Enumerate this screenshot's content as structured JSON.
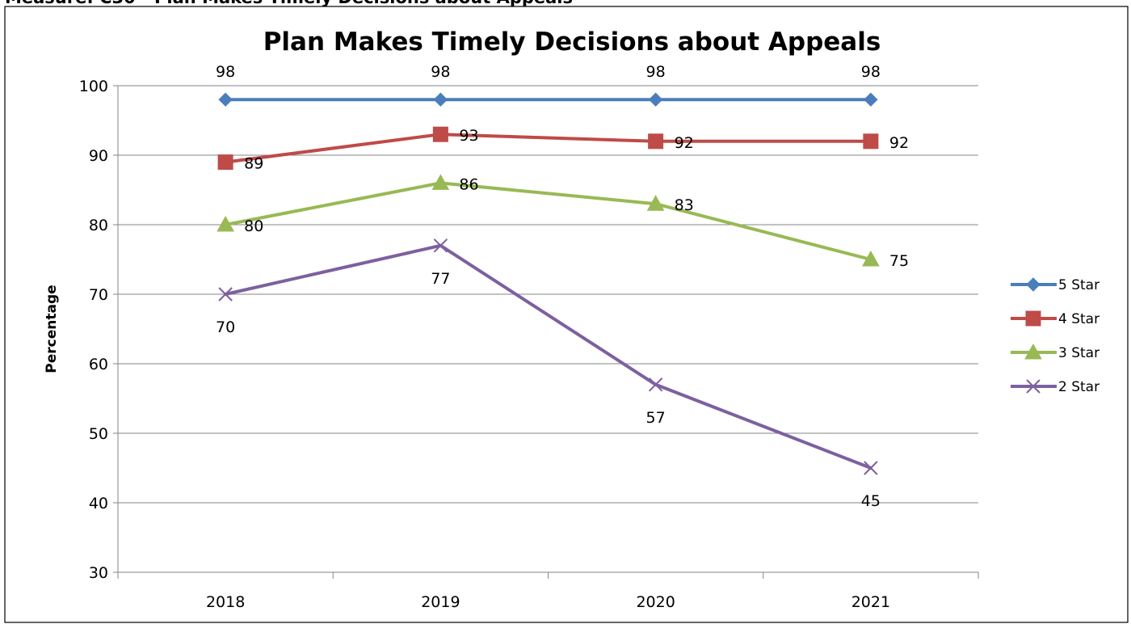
{
  "header_cut_text": "Measure: C30 - Plan Makes Timely Decisions about Appeals",
  "chart_data": {
    "type": "line",
    "title": "Plan Makes Timely Decisions about Appeals",
    "xlabel": "",
    "ylabel": "Percentage",
    "ylim": [
      30,
      100
    ],
    "yticks": [
      30,
      40,
      50,
      60,
      70,
      80,
      90,
      100
    ],
    "categories": [
      "2018",
      "2019",
      "2020",
      "2021"
    ],
    "grid": true,
    "legend_position": "right",
    "series": [
      {
        "name": "5 Star",
        "values": [
          98,
          98,
          98,
          98
        ],
        "color": "#4a7ebb",
        "marker": "diamond",
        "label_pos": "above"
      },
      {
        "name": "4 Star",
        "values": [
          89,
          93,
          92,
          92
        ],
        "color": "#be4b48",
        "marker": "square",
        "label_pos": "right"
      },
      {
        "name": "3 Star",
        "values": [
          80,
          86,
          83,
          75
        ],
        "color": "#98b954",
        "marker": "triangle",
        "label_pos": "right"
      },
      {
        "name": "2 Star",
        "values": [
          70,
          77,
          57,
          45
        ],
        "color": "#7d60a0",
        "marker": "x",
        "label_pos": "below"
      }
    ]
  }
}
